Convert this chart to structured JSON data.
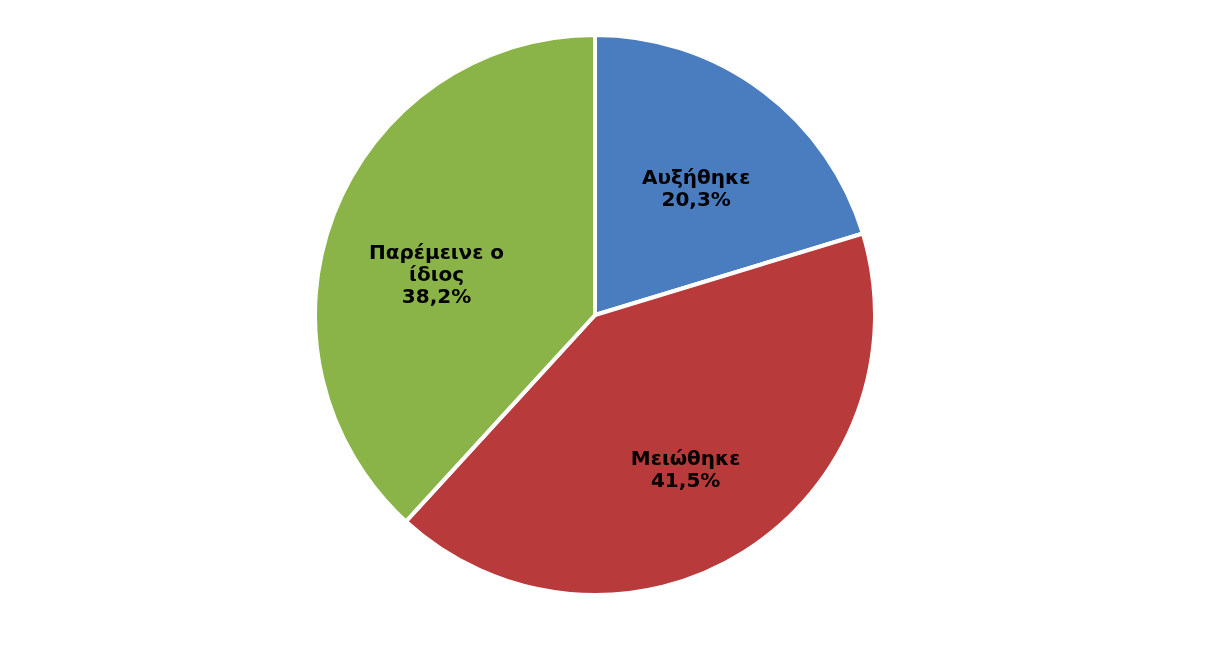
{
  "chart_data": {
    "type": "pie",
    "categories": [
      "Αυξήθηκε",
      "Μειώθηκε",
      "Παρέμεινε ο ίδιος"
    ],
    "values": [
      20.3,
      41.5,
      38.2
    ],
    "value_labels": [
      "20,3%",
      "41,5%",
      "38,2%"
    ],
    "colors": [
      "#4a7cc0",
      "#b83a3a",
      "#8ab448"
    ],
    "legend": false
  }
}
